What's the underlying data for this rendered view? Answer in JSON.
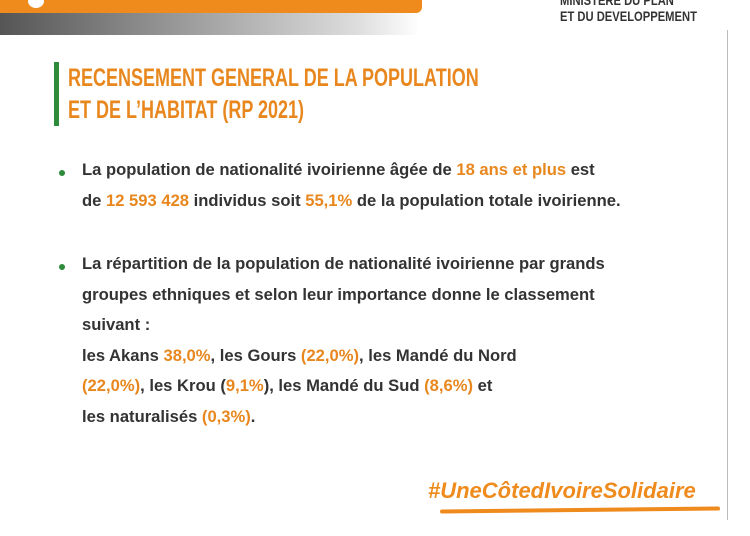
{
  "header": {
    "ministry": [
      "MINISTERE DU PLAN",
      "ET DU DEVELOPPEMENT"
    ]
  },
  "title": [
    "RECENSEMENT GENERAL DE LA POPULATION",
    "ET DE L’HABITAT (RP 2021)"
  ],
  "bullets": [
    {
      "lines": [
        [
          {
            "text": "La population de nationalité ivoirienne âgée de "
          },
          {
            "text": "18 ans et plus",
            "highlight": true
          },
          {
            "text": " est"
          }
        ],
        [
          {
            "text": "de "
          },
          {
            "text": "12 593 428",
            "highlight": true
          },
          {
            "text": " individus soit "
          },
          {
            "text": "55,1%",
            "highlight": true
          },
          {
            "text": " de la population totale ivoirienne."
          }
        ]
      ]
    },
    {
      "lines": [
        [
          {
            "text": "La répartition de la population de nationalité ivoirienne par grands"
          }
        ],
        [
          {
            "text": "groupes ethniques et selon leur importance donne le classement"
          }
        ],
        [
          {
            "text": "suivant :"
          }
        ],
        [
          {
            "text": "les Akans "
          },
          {
            "text": "38,0%",
            "highlight": true
          },
          {
            "text": ", les Gours "
          },
          {
            "text": "(22,0%)",
            "highlight": true
          },
          {
            "text": ", les Mandé du Nord"
          }
        ],
        [
          {
            "text": "(22,0%)",
            "highlight": true
          },
          {
            "text": ", les Krou ("
          },
          {
            "text": "9,1%",
            "highlight": true
          },
          {
            "text": "), les Mandé du Sud "
          },
          {
            "text": "(8,6%)",
            "highlight": true
          },
          {
            "text": " et"
          }
        ],
        [
          {
            "text": "les naturalisés "
          },
          {
            "text": "(0,3%)",
            "highlight": true
          },
          {
            "text": "."
          }
        ]
      ]
    }
  ],
  "hashtag": "#UneCôtedIvoireSolidaire"
}
